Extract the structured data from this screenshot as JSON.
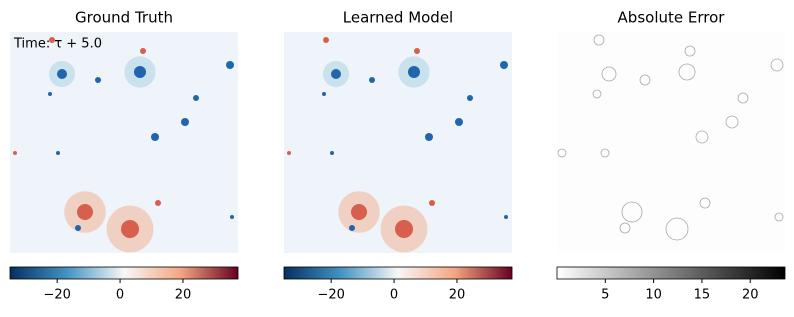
{
  "chart_data": [
    {
      "type": "heatmap",
      "title": "Ground Truth",
      "annotation": "Time: τ + 5.0",
      "colorbar": {
        "lim": [
          -35,
          37.5
        ],
        "ticks": [
          {
            "value": -20,
            "label": "−20"
          },
          0,
          20
        ],
        "colors": [
          "#053061",
          "#4393c3",
          "#f7f7f7",
          "#f4a582",
          "#67001f"
        ]
      }
    },
    {
      "type": "heatmap",
      "title": "Learned Model",
      "colorbar": {
        "lim": [
          -35,
          37.5
        ],
        "ticks": [
          {
            "value": -20,
            "label": "−20"
          },
          0,
          20
        ],
        "colors": [
          "#053061",
          "#4393c3",
          "#f7f7f7",
          "#f4a582",
          "#67001f"
        ]
      }
    },
    {
      "type": "heatmap",
      "title": "Absolute Error",
      "colorbar": {
        "lim": [
          0,
          23.6
        ],
        "ticks": [
          5,
          10,
          15,
          20
        ],
        "colors": [
          "#ffffff",
          "#000000"
        ]
      }
    }
  ]
}
